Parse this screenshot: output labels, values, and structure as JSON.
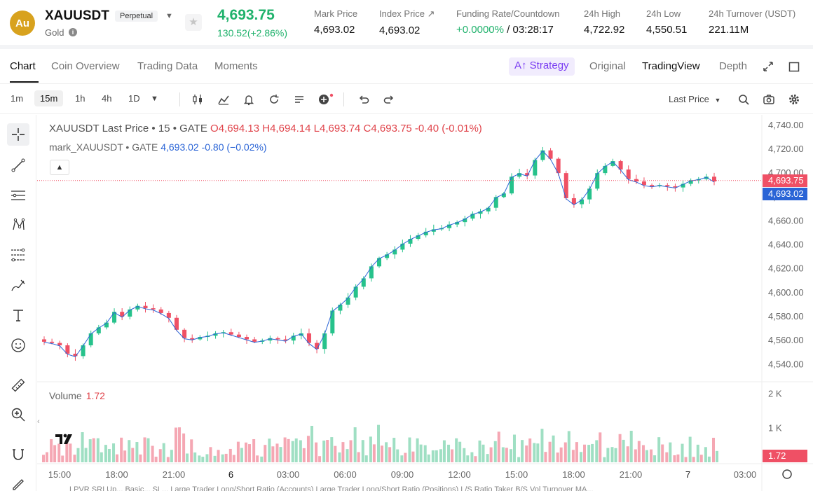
{
  "header": {
    "coin_logo_text": "Au",
    "symbol": "XAUUSDT",
    "contract_type": "Perpetual",
    "asset_name": "Gold",
    "last_price": "4,693.75",
    "change": "130.52(+2.86%)",
    "stats": [
      {
        "label": "Mark Price",
        "value": "4,693.02"
      },
      {
        "label": "Index Price ↗",
        "value": "4,693.02"
      },
      {
        "label": "Funding Rate/Countdown",
        "value_green": "+0.0000%",
        "value_rest": " / 03:28:17"
      },
      {
        "label": "24h High",
        "value": "4,722.92"
      },
      {
        "label": "24h Low",
        "value": "4,550.51"
      },
      {
        "label": "24h Turnover (USDT)",
        "value": "221.11M"
      }
    ]
  },
  "tabs": {
    "left": [
      "Chart",
      "Coin Overview",
      "Trading Data",
      "Moments"
    ],
    "strategy": "A↑ Strategy",
    "right": [
      "Original",
      "TradingView",
      "Depth"
    ]
  },
  "toolbar": {
    "intervals": [
      "1m",
      "15m",
      "1h",
      "4h",
      "1D"
    ],
    "selected_interval": "15m",
    "price_type": "Last Price"
  },
  "legend": {
    "main_prefix": "XAUUSDT Last Price • 15 • GATE",
    "ohlc": "O4,694.13  H4,694.14  L4,693.74  C4,693.75  -0.40  (-0.01%)",
    "mark_prefix": "mark_XAUUSDT • GATE",
    "mark_value": "4,693.02  -0.80  (−0.02%)",
    "volume_label": "Volume",
    "volume_value": "1.72"
  },
  "bottom_strip": "LPVR    SRI    Up...    Basic...    SL...    Large Trader Long/Short Ratio (Accounts)    Large Trader Long/Short Ratio (Positions)    L/S Ratio    Taker B/S Vol    Turnover    MA...",
  "colors": {
    "up": "#26c28b",
    "down": "#ef5065",
    "up_vol": "#9fdfc3",
    "down_vol": "#f5a7b3",
    "accent": "#7b3ff2"
  },
  "chart_data": {
    "type": "candlestick",
    "title": "XAUUSDT Last Price • 15 • GATE",
    "price_axis": {
      "ticks": [
        "4,740.00",
        "4,720.00",
        "4,700.00",
        "4,680.00",
        "4,660.00",
        "4,640.00",
        "4,620.00",
        "4,600.00",
        "4,580.00",
        "4,560.00",
        "4,540.00"
      ],
      "range": [
        4532,
        4744
      ]
    },
    "time_axis": [
      "15:00",
      "18:00",
      "21:00",
      "6",
      "03:00",
      "06:00",
      "09:00",
      "12:00",
      "15:00",
      "18:00",
      "21:00",
      "7",
      "03:00"
    ],
    "volume_axis": {
      "ticks": [
        "2 K",
        "1 K"
      ],
      "range": [
        0,
        2200
      ]
    },
    "price_tag": "4,693.75",
    "mark_tag": "4,693.02",
    "volume_tag": "1.72",
    "close_path": [
      4559,
      4558,
      4556,
      4549,
      4547,
      4556,
      4566,
      4571,
      4575,
      4584,
      4580,
      4586,
      4589,
      4587,
      4586,
      4583,
      4579,
      4569,
      4562,
      4561,
      4563,
      4564,
      4566,
      4567,
      4565,
      4563,
      4561,
      4559,
      4560,
      4562,
      4561,
      4560,
      4564,
      4566,
      4558,
      4553,
      4566,
      4585,
      4590,
      4596,
      4605,
      4612,
      4622,
      4629,
      4632,
      4636,
      4641,
      4645,
      4648,
      4651,
      4653,
      4654,
      4657,
      4659,
      4662,
      4666,
      4668,
      4671,
      4680,
      4683,
      4697,
      4700,
      4698,
      4711,
      4719,
      4712,
      4700,
      4679,
      4674,
      4678,
      4687,
      4700,
      4706,
      4710,
      4703,
      4695,
      4693,
      4690,
      4689,
      4690,
      4689,
      4688,
      4691,
      4694,
      4695,
      4697,
      4693
    ]
  }
}
